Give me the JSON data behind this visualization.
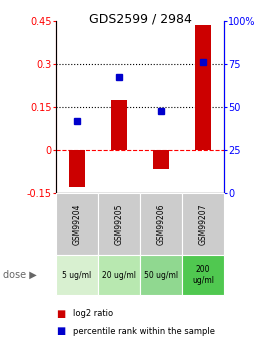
{
  "title": "GDS2599 / 2984",
  "samples": [
    "GSM99204",
    "GSM99205",
    "GSM99206",
    "GSM99207"
  ],
  "doses": [
    "5 ug/ml",
    "20 ug/ml",
    "50 ug/ml",
    "200\nug/ml"
  ],
  "log2_ratio": [
    -0.13,
    0.175,
    -0.065,
    0.435
  ],
  "percentile_rank": [
    0.1,
    0.255,
    0.135,
    0.305
  ],
  "ylim_left": [
    -0.15,
    0.45
  ],
  "ylim_right": [
    0,
    100
  ],
  "yticks_left": [
    -0.15,
    0,
    0.15,
    0.3,
    0.45
  ],
  "yticks_right": [
    0,
    25,
    50,
    75,
    100
  ],
  "hlines": [
    0.15,
    0.3
  ],
  "bar_color": "#cc0000",
  "dot_color": "#0000cc",
  "dose_bg_colors": [
    "#d8f0d0",
    "#b8e8b0",
    "#90d890",
    "#50c850"
  ],
  "sample_bg_color": "#cccccc",
  "legend_bar_label": "log2 ratio",
  "legend_dot_label": "percentile rank within the sample",
  "dose_label": "dose ▶",
  "bar_width": 0.4
}
